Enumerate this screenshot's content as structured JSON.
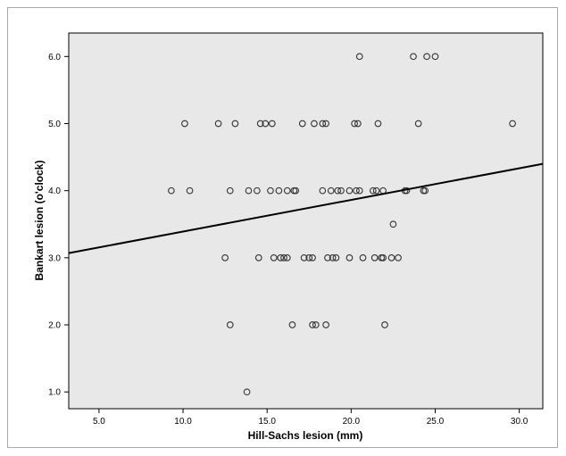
{
  "chart_data": {
    "type": "scatter",
    "xlabel": "Hill-Sachs lesion (mm)",
    "ylabel": "Bankart lesion (o'clock)",
    "xlim": [
      3.2,
      31.4
    ],
    "ylim": [
      0.75,
      6.35
    ],
    "xticks": [
      "5.0",
      "10.0",
      "15.0",
      "20.0",
      "25.0",
      "30.0"
    ],
    "yticks": [
      "1.0",
      "2.0",
      "3.0",
      "4.0",
      "5.0",
      "6.0"
    ],
    "grid": false,
    "legend": "none",
    "points": [
      {
        "x": 20.5,
        "y": 6.0
      },
      {
        "x": 23.7,
        "y": 6.0
      },
      {
        "x": 24.5,
        "y": 6.0
      },
      {
        "x": 25.0,
        "y": 6.0
      },
      {
        "x": 10.1,
        "y": 5.0
      },
      {
        "x": 12.1,
        "y": 5.0
      },
      {
        "x": 13.1,
        "y": 5.0
      },
      {
        "x": 14.6,
        "y": 5.0
      },
      {
        "x": 14.9,
        "y": 5.0
      },
      {
        "x": 15.3,
        "y": 5.0
      },
      {
        "x": 17.1,
        "y": 5.0
      },
      {
        "x": 17.8,
        "y": 5.0
      },
      {
        "x": 18.3,
        "y": 5.0
      },
      {
        "x": 18.5,
        "y": 5.0
      },
      {
        "x": 20.2,
        "y": 5.0
      },
      {
        "x": 20.4,
        "y": 5.0
      },
      {
        "x": 21.6,
        "y": 5.0
      },
      {
        "x": 24.0,
        "y": 5.0
      },
      {
        "x": 29.6,
        "y": 5.0
      },
      {
        "x": 9.3,
        "y": 4.0
      },
      {
        "x": 10.4,
        "y": 4.0
      },
      {
        "x": 12.8,
        "y": 4.0
      },
      {
        "x": 13.9,
        "y": 4.0
      },
      {
        "x": 14.4,
        "y": 4.0
      },
      {
        "x": 15.2,
        "y": 4.0
      },
      {
        "x": 15.7,
        "y": 4.0
      },
      {
        "x": 16.2,
        "y": 4.0
      },
      {
        "x": 16.6,
        "y": 4.0
      },
      {
        "x": 16.7,
        "y": 4.0
      },
      {
        "x": 18.3,
        "y": 4.0
      },
      {
        "x": 18.8,
        "y": 4.0
      },
      {
        "x": 19.2,
        "y": 4.0
      },
      {
        "x": 19.4,
        "y": 4.0
      },
      {
        "x": 19.9,
        "y": 4.0
      },
      {
        "x": 20.3,
        "y": 4.0
      },
      {
        "x": 20.5,
        "y": 4.0
      },
      {
        "x": 21.3,
        "y": 4.0
      },
      {
        "x": 21.5,
        "y": 4.0
      },
      {
        "x": 21.9,
        "y": 4.0
      },
      {
        "x": 23.2,
        "y": 4.0
      },
      {
        "x": 23.3,
        "y": 4.0
      },
      {
        "x": 24.3,
        "y": 4.0
      },
      {
        "x": 24.4,
        "y": 4.0
      },
      {
        "x": 22.5,
        "y": 3.5
      },
      {
        "x": 12.5,
        "y": 3.0
      },
      {
        "x": 14.5,
        "y": 3.0
      },
      {
        "x": 15.4,
        "y": 3.0
      },
      {
        "x": 15.8,
        "y": 3.0
      },
      {
        "x": 16.0,
        "y": 3.0
      },
      {
        "x": 16.2,
        "y": 3.0
      },
      {
        "x": 17.2,
        "y": 3.0
      },
      {
        "x": 17.5,
        "y": 3.0
      },
      {
        "x": 17.7,
        "y": 3.0
      },
      {
        "x": 18.6,
        "y": 3.0
      },
      {
        "x": 18.9,
        "y": 3.0
      },
      {
        "x": 19.1,
        "y": 3.0
      },
      {
        "x": 19.9,
        "y": 3.0
      },
      {
        "x": 20.7,
        "y": 3.0
      },
      {
        "x": 21.4,
        "y": 3.0
      },
      {
        "x": 21.8,
        "y": 3.0
      },
      {
        "x": 21.9,
        "y": 3.0
      },
      {
        "x": 22.4,
        "y": 3.0
      },
      {
        "x": 22.8,
        "y": 3.0
      },
      {
        "x": 12.8,
        "y": 2.0
      },
      {
        "x": 16.5,
        "y": 2.0
      },
      {
        "x": 17.7,
        "y": 2.0
      },
      {
        "x": 17.9,
        "y": 2.0
      },
      {
        "x": 18.5,
        "y": 2.0
      },
      {
        "x": 22.0,
        "y": 2.0
      },
      {
        "x": 13.8,
        "y": 1.0
      }
    ],
    "fit_line": {
      "x": [
        3.2,
        31.4
      ],
      "y": [
        3.07,
        4.4
      ]
    }
  },
  "colors": {
    "plot_background": "#e8e8e8",
    "marker_stroke": "#333333",
    "fit_line": "#000000",
    "frame_border": "#a8a8a8"
  }
}
